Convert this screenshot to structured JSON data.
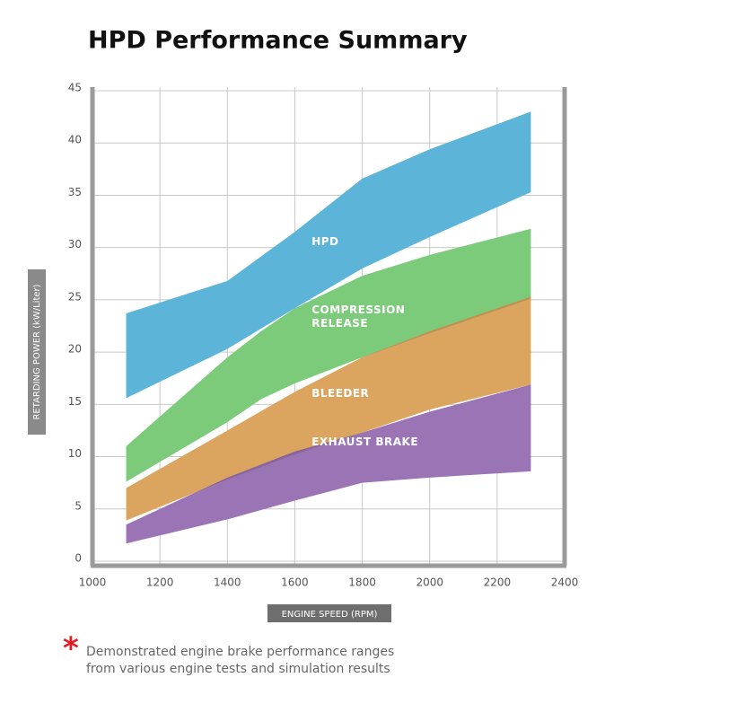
{
  "chart_data": {
    "type": "range-area",
    "title": "HPD Performance Summary",
    "x_label": "ENGINE SPEED (RPM)",
    "y_label": "RETARDING POWER (kW/Liter)",
    "xlim": [
      1000,
      2400
    ],
    "xticks": [
      1000,
      1200,
      1400,
      1600,
      1800,
      2000,
      2200,
      2400
    ],
    "ylim": [
      0,
      45
    ],
    "yticks": [
      0,
      5,
      10,
      15,
      20,
      25,
      30,
      35,
      40,
      45
    ],
    "grid": true,
    "series": [
      {
        "name": "EXHAUST BRAKE",
        "color": "#9b74b6",
        "x": [
          1100,
          1400,
          1600,
          1800,
          2000,
          2300
        ],
        "low": [
          1.7,
          4,
          5.8,
          7.5,
          8,
          8.6
        ],
        "high": [
          3.5,
          8,
          10.5,
          12.3,
          14.3,
          16.9
        ]
      },
      {
        "name": "BLEEDER",
        "color": "#dba55f",
        "x": [
          1100,
          1400,
          1600,
          1800,
          2000,
          2300
        ],
        "low": [
          3.9,
          7.8,
          10.2,
          12.3,
          14.5,
          16.9
        ],
        "high": [
          7,
          12.5,
          16.2,
          19.5,
          22,
          25.3
        ]
      },
      {
        "name": "COMPRESSION RELEASE",
        "color": "#7ccb7a",
        "x": [
          1100,
          1400,
          1500,
          1600,
          1800,
          2000,
          2300
        ],
        "low": [
          7.6,
          13.3,
          15.5,
          17,
          19.5,
          21.8,
          25.1
        ],
        "high": [
          11,
          19.5,
          22,
          24.2,
          27.3,
          29.3,
          31.8
        ]
      },
      {
        "name": "HPD",
        "color": "#5cb4d8",
        "x": [
          1100,
          1400,
          1600,
          1800,
          2000,
          2300
        ],
        "low": [
          15.6,
          20.3,
          24.2,
          28,
          31,
          35.3
        ],
        "high": [
          23.7,
          26.8,
          31.5,
          36.6,
          39.4,
          43
        ]
      }
    ],
    "note": "Demonstrated engine brake performance ranges from various engine tests and simulation results"
  }
}
